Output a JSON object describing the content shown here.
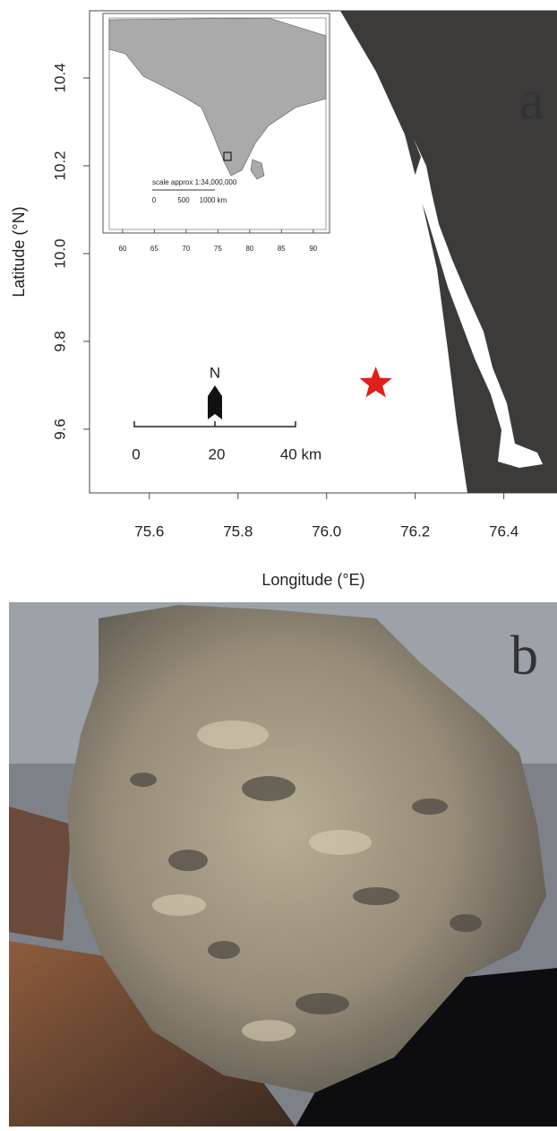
{
  "map": {
    "panel_label": "a",
    "xlabel": "Longitude (°E)",
    "ylabel": "Latitude (°N)",
    "xlim": [
      75.465,
      76.52
    ],
    "ylim": [
      9.455,
      10.553
    ],
    "xticks": [
      75.6,
      75.8,
      {
        "value": 76,
        "label": "76.0"
      },
      76.2,
      76.4
    ],
    "yticks": [
      9.6,
      9.8,
      {
        "value": 10,
        "label": "10.0"
      },
      10.2,
      10.4
    ],
    "site": {
      "lon": 76.111,
      "lat": 9.704,
      "color": "#e0201b"
    },
    "north": "N",
    "scale_bar": [
      "0",
      "20",
      "40 km"
    ],
    "inset": {
      "scale_text": "scale approx 1:34,000,000",
      "scale_bar": [
        "0",
        "500",
        "1000 km"
      ],
      "xlim": [
        57.9,
        92
      ],
      "xticks": [
        60,
        65,
        70,
        75,
        80,
        85,
        90
      ]
    }
  },
  "photo": {
    "panel_label": "b"
  }
}
